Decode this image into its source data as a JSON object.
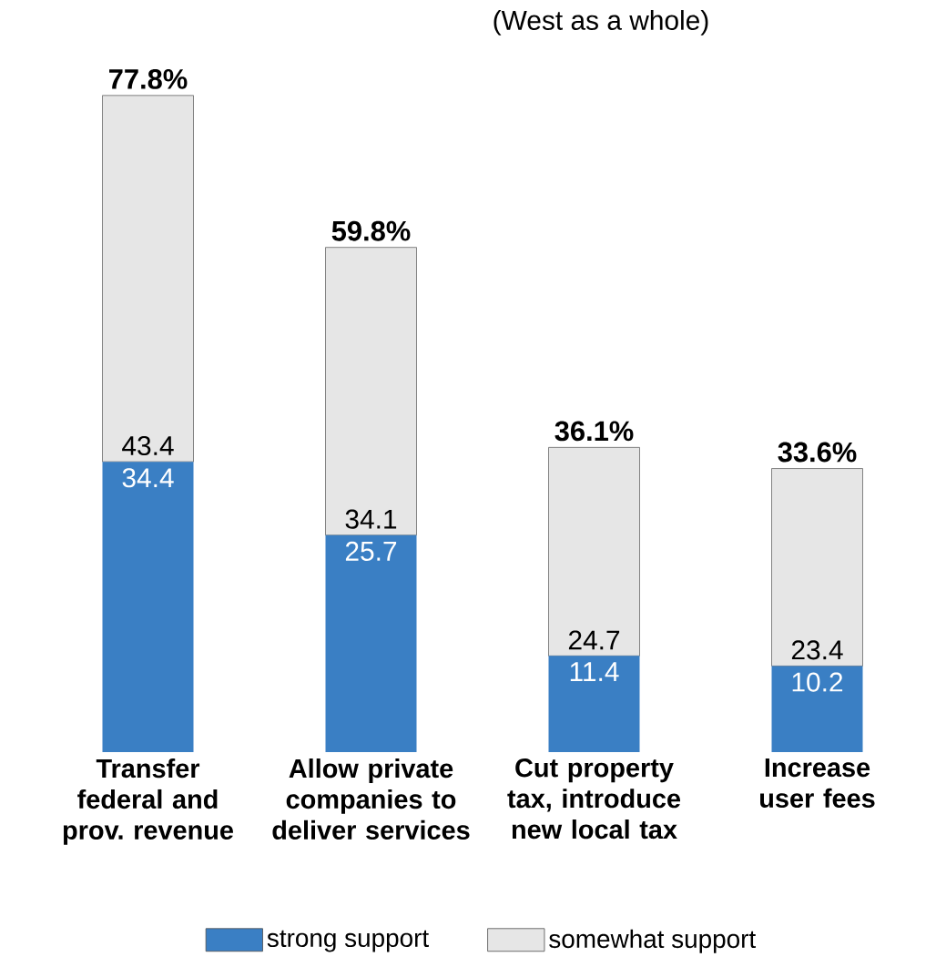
{
  "chart_data": {
    "type": "bar",
    "subtitle": "(West as a whole)",
    "stacked": true,
    "data_labels": true,
    "legend": "bottom",
    "categories": [
      "Transfer federal and prov. revenue",
      "Allow private companies to deliver services",
      "Cut property tax, introduce new local tax",
      "Increase user fees"
    ],
    "series": [
      {
        "name": "strong support",
        "color": "#3a7fc4",
        "values": [
          34.4,
          25.7,
          11.4,
          10.2
        ]
      },
      {
        "name": "somewhat support",
        "color": "#e6e6e6",
        "values": [
          43.4,
          34.1,
          24.7,
          23.4
        ]
      }
    ],
    "totals": [
      "77.8%",
      "59.8%",
      "36.1%",
      "33.6%"
    ]
  }
}
